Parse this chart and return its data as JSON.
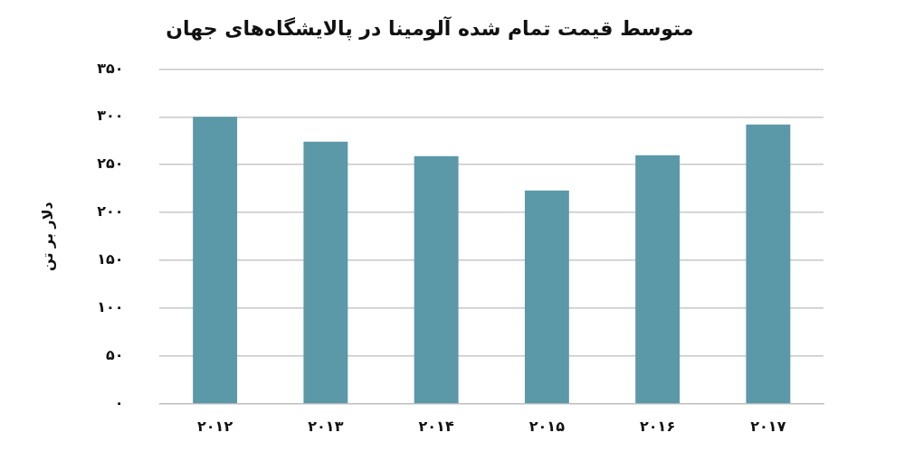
{
  "chart_data": {
    "type": "bar",
    "title": "متوسط قیمت تمام شده آلومینا در پالایشگاه‌های جهان",
    "ylabel": "دلار بر تن",
    "categories": [
      "۲۰۱۲",
      "۲۰۱۳",
      "۲۰۱۴",
      "۲۰۱۵",
      "۲۰۱۶",
      "۲۰۱۷"
    ],
    "values": [
      300,
      274,
      259,
      223,
      260,
      292
    ],
    "color": "#5b98a8",
    "ylim": [
      0,
      350
    ],
    "yticks": [
      {
        "value": 0,
        "label": "۰"
      },
      {
        "value": 50,
        "label": "۵۰"
      },
      {
        "value": 100,
        "label": "۱۰۰"
      },
      {
        "value": 150,
        "label": "۱۵۰"
      },
      {
        "value": 200,
        "label": "۲۰۰"
      },
      {
        "value": 250,
        "label": "۲۵۰"
      },
      {
        "value": 300,
        "label": "۳۰۰"
      },
      {
        "value": 350,
        "label": "۳۵۰"
      }
    ],
    "grid": "y",
    "legend": false
  }
}
